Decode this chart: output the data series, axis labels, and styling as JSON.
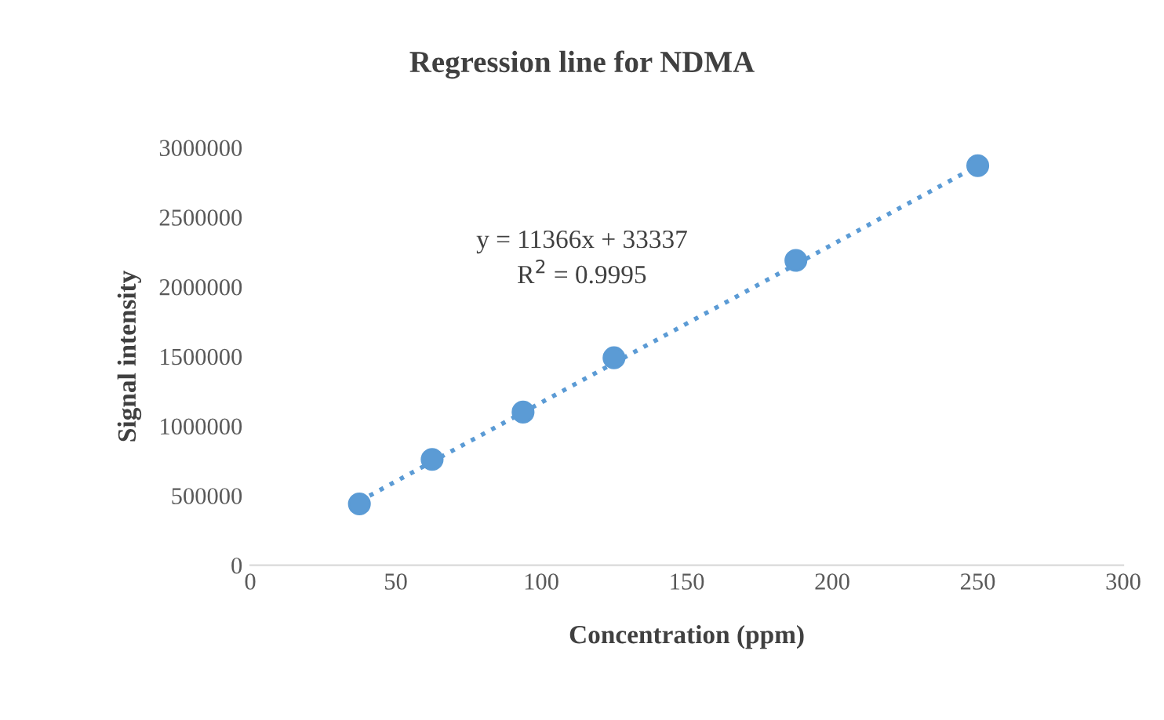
{
  "chart_data": {
    "type": "scatter",
    "title": "Regression line for NDMA",
    "xlabel": "Concentration (ppm)",
    "ylabel": "Signal intensity",
    "x": [
      37.5,
      62.5,
      93.75,
      125,
      187.5,
      250
    ],
    "series": [
      {
        "name": null,
        "type": "scatter",
        "color": "#5b9bd5",
        "marker": "circle",
        "values": [
          440000,
          760000,
          1100000,
          1490000,
          2190000,
          2870000
        ]
      },
      {
        "name": null,
        "type": "line",
        "color": "#5b9bd5",
        "line_style": "dotted",
        "marker": "none",
        "x": [
          37.5,
          250
        ],
        "values": [
          460000,
          2870000
        ]
      }
    ],
    "annotations": [
      "y = 11366x + 33337",
      "R$^{2}$ = 0.9995"
    ],
    "xlim": [
      0,
      300
    ],
    "xticks": [
      0,
      50,
      100,
      150,
      200,
      250,
      300
    ],
    "ylim": [
      0,
      3000000
    ],
    "yticks": [
      0,
      500000,
      1000000,
      1500000,
      2000000,
      2500000,
      3000000
    ],
    "grid": false,
    "legend": false
  }
}
